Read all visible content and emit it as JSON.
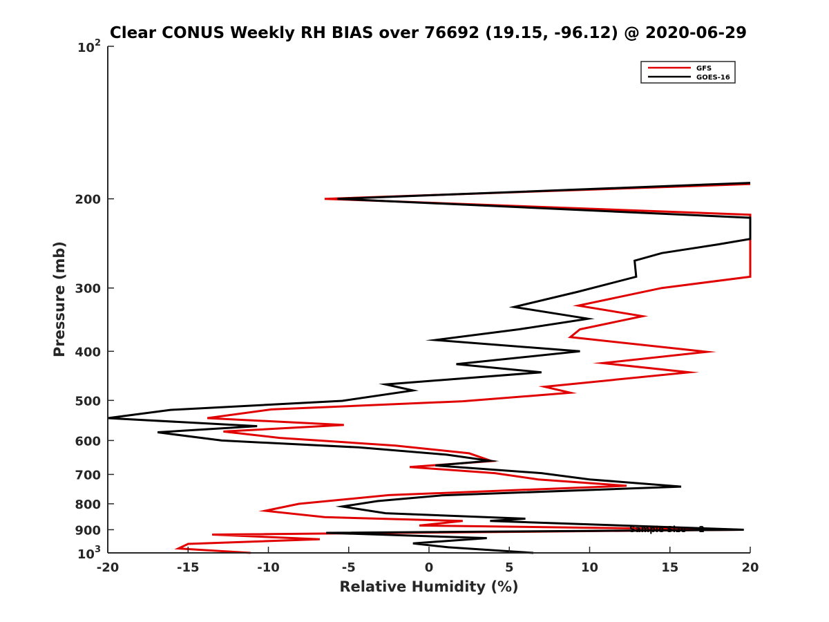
{
  "chart_data": {
    "type": "line",
    "title": "Clear CONUS Weekly RH BIAS over 76692 (19.15, -96.12) @ 2020-06-29",
    "xlabel": "Relative Humidity (%)",
    "ylabel": "Pressure (mb)",
    "xlim": [
      -20,
      20
    ],
    "ylim": [
      100,
      1000
    ],
    "yscale": "log",
    "y_reversed": true,
    "x_ticks": [
      -20,
      -15,
      -10,
      -5,
      0,
      5,
      10,
      15,
      20
    ],
    "x_tick_labels": [
      "-20",
      "-15",
      "-10",
      "-5",
      "0",
      "5",
      "10",
      "15",
      "20"
    ],
    "y_ticks": [
      200,
      300,
      400,
      500,
      600,
      700,
      800,
      900
    ],
    "y_tick_labels": [
      "200",
      "300",
      "400",
      "500",
      "600",
      "700",
      "800",
      "900"
    ],
    "y_end_ticks": [
      {
        "value": 100,
        "base": "10",
        "exp": "2"
      },
      {
        "value": 1000,
        "base": "10",
        "exp": "3"
      }
    ],
    "annotation": "Sample Size = 2",
    "legend_position": "top-right",
    "series": [
      {
        "name": "GFS",
        "color": "#e00000",
        "points": [
          [
            20,
            187
          ],
          [
            -6.5,
            200
          ],
          [
            20,
            215
          ],
          [
            20,
            285
          ],
          [
            14.5,
            300
          ],
          [
            9.3,
            325
          ],
          [
            13.3,
            341
          ],
          [
            9.4,
            362
          ],
          [
            8.8,
            375
          ],
          [
            17.3,
            401
          ],
          [
            10.8,
            422
          ],
          [
            16.2,
            440
          ],
          [
            7.2,
            470
          ],
          [
            8.8,
            483
          ],
          [
            2.1,
            502
          ],
          [
            -9.8,
            521
          ],
          [
            -13.8,
            542
          ],
          [
            -5.3,
            559
          ],
          [
            -12.8,
            576
          ],
          [
            -9.3,
            593
          ],
          [
            -2.1,
            614
          ],
          [
            2.5,
            636
          ],
          [
            3.9,
            659
          ],
          [
            -1.2,
            677
          ],
          [
            4.1,
            696
          ],
          [
            6.8,
            716
          ],
          [
            12.3,
            737
          ],
          [
            -2.5,
            769
          ],
          [
            -8.1,
            800
          ],
          [
            -10.2,
            826
          ],
          [
            -6.5,
            850
          ],
          [
            2.1,
            865
          ],
          [
            -0.6,
            883
          ],
          [
            19.5,
            900
          ],
          [
            -13.5,
            920
          ],
          [
            -6.8,
            940
          ],
          [
            -15.0,
            960
          ],
          [
            -15.6,
            980
          ],
          [
            -11.1,
            1000
          ]
        ]
      },
      {
        "name": "GOES-16",
        "color": "#000000",
        "points": [
          [
            20,
            186
          ],
          [
            -5.7,
            200
          ],
          [
            20,
            218
          ],
          [
            20,
            240
          ],
          [
            18.0,
            246
          ],
          [
            14.5,
            256
          ],
          [
            12.8,
            265
          ],
          [
            12.9,
            285
          ],
          [
            9.3,
            305
          ],
          [
            5.3,
            327
          ],
          [
            9.9,
            345
          ],
          [
            5.6,
            362
          ],
          [
            0.4,
            380
          ],
          [
            9.4,
            400
          ],
          [
            1.7,
            424
          ],
          [
            7.0,
            440
          ],
          [
            -2.7,
            465
          ],
          [
            -1.0,
            478
          ],
          [
            -5.4,
            501
          ],
          [
            -16.1,
            522
          ],
          [
            -20,
            542
          ],
          [
            -10.7,
            562
          ],
          [
            -16.9,
            578
          ],
          [
            -12.9,
            600
          ],
          [
            -4.4,
            619
          ],
          [
            1.1,
            640
          ],
          [
            3.8,
            658
          ],
          [
            0.4,
            672
          ],
          [
            7.0,
            696
          ],
          [
            10.0,
            716
          ],
          [
            15.7,
            740
          ],
          [
            0.8,
            770
          ],
          [
            -3.2,
            790
          ],
          [
            -5.4,
            810
          ],
          [
            -2.7,
            835
          ],
          [
            6.0,
            856
          ],
          [
            3.8,
            865
          ],
          [
            19.6,
            900
          ],
          [
            -6.4,
            913
          ],
          [
            3.6,
            935
          ],
          [
            -1.0,
            958
          ],
          [
            1.2,
            975
          ],
          [
            6.5,
            1000
          ]
        ]
      }
    ]
  }
}
